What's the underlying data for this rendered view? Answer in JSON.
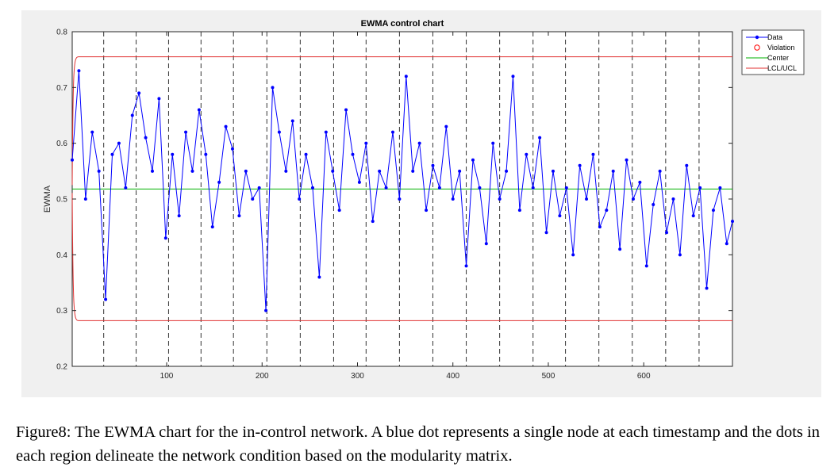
{
  "caption": "Figure8: The EWMA chart for the in-control network. A blue dot represents a single node at each timestamp and the dots in each region delineate the network condition based on the modularity matrix.",
  "colors": {
    "data": "#0000ff",
    "center": "#00b000",
    "limits": "#e03030",
    "violation": "#ff0000",
    "boundary": "#333333"
  },
  "chart_data": {
    "type": "line",
    "title": "EWMA control chart",
    "xlabel": "",
    "ylabel": "EWMA",
    "xlim": [
      1,
      693
    ],
    "ylim": [
      0.2,
      0.8
    ],
    "x_ticks": [
      "100",
      "200",
      "300",
      "400",
      "500",
      "600"
    ],
    "y_ticks": [
      "0.2",
      "0.3",
      "0.4",
      "0.5",
      "0.6",
      "0.7",
      "0.8"
    ],
    "grid": false,
    "legend_position": "top-right",
    "legend": [
      "Data",
      "Violation",
      "Center",
      "LCL/UCL"
    ],
    "center": 0.518,
    "ucl": 0.755,
    "lcl": 0.282,
    "region_boundaries": [
      34,
      68,
      102,
      136,
      170,
      205,
      240,
      275,
      309,
      344,
      379,
      414,
      449,
      484,
      518,
      553,
      588,
      623,
      658
    ],
    "series": [
      {
        "name": "Data",
        "x": [
          1,
          8,
          15,
          22,
          29,
          36,
          43,
          50,
          57,
          64,
          71,
          78,
          85,
          92,
          99,
          106,
          113,
          120,
          127,
          134,
          141,
          148,
          155,
          162,
          169,
          176,
          183,
          190,
          197,
          204,
          211,
          218,
          225,
          232,
          239,
          246,
          253,
          260,
          267,
          274,
          281,
          288,
          295,
          302,
          309,
          316,
          323,
          330,
          337,
          344,
          351,
          358,
          365,
          372,
          379,
          386,
          393,
          400,
          407,
          414,
          421,
          428,
          435,
          442,
          449,
          456,
          463,
          470,
          477,
          484,
          491,
          498,
          505,
          512,
          519,
          526,
          533,
          540,
          547,
          554,
          561,
          568,
          575,
          582,
          589,
          596,
          603,
          610,
          617,
          624,
          631,
          638,
          645,
          652,
          659,
          666,
          673,
          680,
          687,
          693
        ],
        "values": [
          0.57,
          0.73,
          0.5,
          0.62,
          0.55,
          0.32,
          0.58,
          0.6,
          0.52,
          0.65,
          0.69,
          0.61,
          0.55,
          0.68,
          0.43,
          0.58,
          0.47,
          0.62,
          0.55,
          0.66,
          0.58,
          0.45,
          0.53,
          0.63,
          0.59,
          0.47,
          0.55,
          0.5,
          0.52,
          0.3,
          0.7,
          0.62,
          0.55,
          0.64,
          0.5,
          0.58,
          0.52,
          0.36,
          0.62,
          0.55,
          0.48,
          0.66,
          0.58,
          0.53,
          0.6,
          0.46,
          0.55,
          0.52,
          0.62,
          0.5,
          0.72,
          0.55,
          0.6,
          0.48,
          0.56,
          0.52,
          0.63,
          0.5,
          0.55,
          0.38,
          0.57,
          0.52,
          0.42,
          0.6,
          0.5,
          0.55,
          0.72,
          0.48,
          0.58,
          0.52,
          0.61,
          0.44,
          0.55,
          0.47,
          0.52,
          0.4,
          0.56,
          0.5,
          0.58,
          0.45,
          0.48,
          0.55,
          0.41,
          0.57,
          0.5,
          0.53,
          0.38,
          0.49,
          0.55,
          0.44,
          0.5,
          0.4,
          0.56,
          0.47,
          0.52,
          0.34,
          0.48,
          0.52,
          0.42,
          0.46
        ]
      }
    ]
  }
}
